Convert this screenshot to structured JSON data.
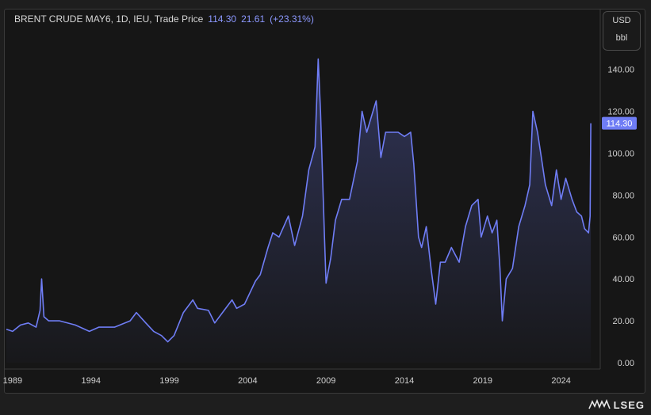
{
  "header": {
    "instrument": "BRENT CRUDE MAY6, 1D, IEU, Trade Price",
    "last_price": "114.30",
    "change": "21.61",
    "change_pct": "(+23.31%)"
  },
  "unit_box": {
    "currency": "USD",
    "unit": "bbl"
  },
  "price_tag": "114.30",
  "logo": "LSEG",
  "colors": {
    "line": "#6f7df5",
    "tag_bg": "#6f7df5",
    "background": "#161616"
  },
  "chart_data": {
    "type": "area",
    "title": "BRENT CRUDE MAY6, 1D, IEU, Trade Price",
    "xlabel": "",
    "ylabel": "",
    "xlim": [
      1988.6,
      2026.5
    ],
    "ylim": [
      -3,
      158
    ],
    "y_ticks": [
      "0.00",
      "20.00",
      "40.00",
      "60.00",
      "80.00",
      "100.00",
      "120.00",
      "140.00"
    ],
    "y_tick_values": [
      0,
      20,
      40,
      60,
      80,
      100,
      120,
      140
    ],
    "x_ticks": [
      "1989",
      "1994",
      "1999",
      "2004",
      "2009",
      "2014",
      "2019",
      "2024"
    ],
    "x_tick_values": [
      1989,
      1994,
      1999,
      2004,
      2009,
      2014,
      2019,
      2024
    ],
    "grid": false,
    "legend": "none",
    "series": [
      {
        "x": [
          1988.6,
          1989.0,
          1989.5,
          1990.0,
          1990.5,
          1990.75,
          1990.85,
          1991.0,
          1991.3,
          1992.0,
          1993.0,
          1993.9,
          1994.5,
          1995.5,
          1996.5,
          1996.9,
          1997.5,
          1998.0,
          1998.5,
          1998.9,
          1999.3,
          1999.9,
          2000.5,
          2000.8,
          2001.5,
          2001.9,
          2002.5,
          2003.0,
          2003.3,
          2003.8,
          2004.5,
          2004.8,
          2005.3,
          2005.6,
          2006.0,
          2006.6,
          2007.0,
          2007.5,
          2007.9,
          2008.3,
          2008.5,
          2008.65,
          2008.9,
          2009.0,
          2009.3,
          2009.6,
          2010.0,
          2010.5,
          2011.0,
          2011.3,
          2011.6,
          2012.0,
          2012.2,
          2012.5,
          2012.8,
          2013.2,
          2013.6,
          2014.0,
          2014.4,
          2014.6,
          2014.9,
          2015.1,
          2015.4,
          2015.7,
          2016.0,
          2016.3,
          2016.6,
          2017.0,
          2017.5,
          2017.9,
          2018.3,
          2018.7,
          2018.9,
          2019.3,
          2019.6,
          2019.9,
          2020.1,
          2020.25,
          2020.5,
          2020.9,
          2021.3,
          2021.7,
          2022.0,
          2022.2,
          2022.5,
          2022.8,
          2023.0,
          2023.4,
          2023.7,
          2024.0,
          2024.3,
          2024.7,
          2025.0,
          2025.3,
          2025.5,
          2025.75,
          2025.85,
          2025.9
        ],
        "y": [
          16,
          15,
          18,
          19,
          17,
          25,
          40,
          22,
          20,
          20,
          18,
          15,
          17,
          17,
          20,
          24,
          19,
          15,
          13,
          10,
          13,
          24,
          30,
          26,
          25,
          19,
          25,
          30,
          26,
          28,
          39,
          42,
          55,
          62,
          60,
          70,
          56,
          70,
          92,
          103,
          145,
          120,
          60,
          38,
          50,
          68,
          78,
          78,
          96,
          120,
          110,
          120,
          125,
          98,
          110,
          110,
          110,
          108,
          110,
          95,
          60,
          55,
          65,
          45,
          28,
          48,
          48,
          55,
          48,
          65,
          75,
          78,
          60,
          70,
          62,
          68,
          45,
          20,
          40,
          45,
          65,
          75,
          85,
          120,
          110,
          95,
          85,
          75,
          92,
          78,
          88,
          78,
          72,
          70,
          64,
          62,
          70,
          114.3
        ]
      }
    ]
  }
}
